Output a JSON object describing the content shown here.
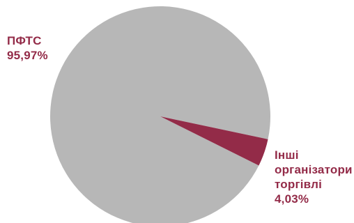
{
  "chart_data": {
    "type": "pie",
    "slices": [
      {
        "label": "ПФТС",
        "value": 95.97,
        "value_label": "95,97%",
        "color": "#b7b7b7"
      },
      {
        "label_lines": [
          "Інші",
          "організатори",
          "торгівлі"
        ],
        "value": 4.03,
        "value_label": "4,03%",
        "color": "#932b48"
      }
    ],
    "label_color": "#932b48"
  }
}
